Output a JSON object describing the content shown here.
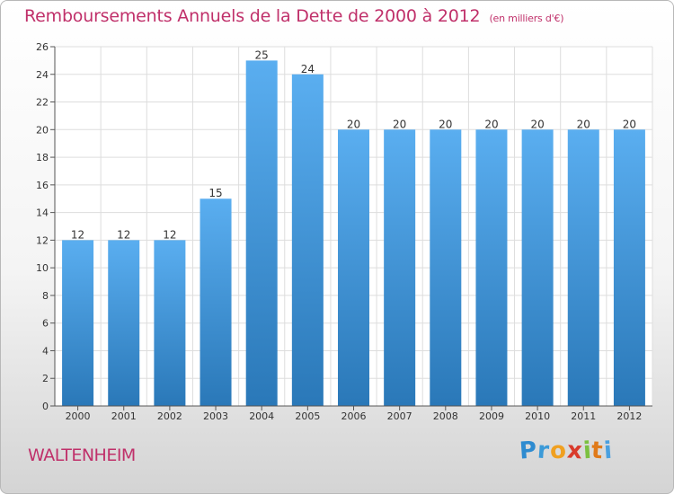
{
  "chart_data": {
    "type": "bar",
    "title": "Remboursements Annuels de la Dette de 2000 à 2012",
    "subtitle": "(en milliers d'€)",
    "categories": [
      "2000",
      "2001",
      "2002",
      "2003",
      "2004",
      "2005",
      "2006",
      "2007",
      "2008",
      "2009",
      "2010",
      "2011",
      "2012"
    ],
    "values": [
      12,
      12,
      12,
      15,
      25,
      24,
      20,
      20,
      20,
      20,
      20,
      20,
      20
    ],
    "ylim": [
      0,
      26
    ],
    "yticks": [
      0,
      2,
      4,
      6,
      8,
      10,
      12,
      14,
      16,
      18,
      20,
      22,
      24,
      26
    ],
    "grid": true,
    "bar_color_top": "#5aaef0",
    "bar_color_bottom": "#2a78b8"
  },
  "commune": "WALTENHEIM",
  "brand": {
    "name": "Proxiti",
    "letters": [
      "P",
      "r",
      "o",
      "x",
      "i",
      "t",
      "i"
    ],
    "colors": [
      "#2e8bd0",
      "#3b9ad8",
      "#f0a020",
      "#d93a2b",
      "#7cc040",
      "#e07a1a",
      "#4aa0e0"
    ]
  },
  "colors": {
    "title": "#c0306a",
    "axis": "#555555",
    "grid": "#dddddd"
  }
}
